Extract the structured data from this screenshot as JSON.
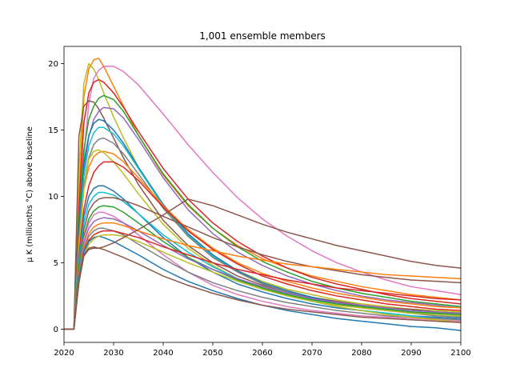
{
  "chart_data": {
    "type": "line",
    "title": "1,001 ensemble members",
    "xlabel": "",
    "ylabel": "μ K (millionths °C) above baseline",
    "xlim": [
      2020,
      2100
    ],
    "ylim": [
      -1,
      21.3
    ],
    "xticks": [
      2020,
      2030,
      2040,
      2050,
      2060,
      2070,
      2080,
      2090,
      2100
    ],
    "yticks": [
      0,
      5,
      10,
      15,
      20
    ],
    "grid": false,
    "legend": "none",
    "colors": [
      "#1f77b4",
      "#ff7f0e",
      "#2ca02c",
      "#d62728",
      "#9467bd",
      "#8c564b",
      "#e377c2",
      "#7f7f7f",
      "#bcbd22",
      "#17becf"
    ],
    "x": [
      2020,
      2022,
      2023,
      2024,
      2025,
      2026,
      2027,
      2028,
      2030,
      2032,
      2035,
      2040,
      2045,
      2050,
      2055,
      2060,
      2065,
      2070,
      2075,
      2080,
      2085,
      2090,
      2095,
      2100
    ],
    "series": [
      {
        "color": "#ff7f0e",
        "values": [
          0,
          0,
          10.0,
          17.5,
          19.6,
          20.3,
          20.4,
          19.8,
          18.3,
          16.8,
          14.6,
          11.6,
          9.3,
          7.6,
          6.3,
          5.3,
          4.6,
          4.0,
          3.6,
          3.2,
          2.9,
          2.6,
          2.4,
          2.2
        ]
      },
      {
        "color": "#bcbd22",
        "values": [
          0,
          0,
          12.0,
          18.5,
          20.0,
          19.6,
          18.8,
          17.8,
          16.0,
          14.4,
          12.2,
          9.2,
          7.0,
          5.5,
          4.4,
          3.6,
          3.0,
          2.6,
          2.2,
          1.9,
          1.7,
          1.5,
          1.4,
          1.3
        ]
      },
      {
        "color": "#e377c2",
        "values": [
          0,
          0,
          6.0,
          13.0,
          17.0,
          18.9,
          19.5,
          19.8,
          19.8,
          19.4,
          18.4,
          16.2,
          13.9,
          11.8,
          9.9,
          8.3,
          7.0,
          5.9,
          5.0,
          4.3,
          3.7,
          3.2,
          2.9,
          2.6
        ]
      },
      {
        "color": "#d62728",
        "values": [
          0,
          0,
          9.0,
          15.5,
          17.8,
          18.6,
          18.8,
          18.6,
          17.8,
          16.7,
          14.9,
          12.1,
          9.8,
          8.0,
          6.6,
          5.5,
          4.6,
          3.9,
          3.4,
          3.0,
          2.6,
          2.3,
          2.1,
          1.9
        ]
      },
      {
        "color": "#8c564b",
        "values": [
          0,
          0,
          14.5,
          16.8,
          17.2,
          17.1,
          16.6,
          15.9,
          14.4,
          12.9,
          10.9,
          8.2,
          6.3,
          5.0,
          4.0,
          3.3,
          2.8,
          2.4,
          2.1,
          1.8,
          1.6,
          1.5,
          1.3,
          1.2
        ]
      },
      {
        "color": "#2ca02c",
        "values": [
          0,
          0,
          8.0,
          13.5,
          15.8,
          16.8,
          17.4,
          17.6,
          17.3,
          16.4,
          14.6,
          11.7,
          9.4,
          7.6,
          6.2,
          5.1,
          4.3,
          3.6,
          3.1,
          2.7,
          2.4,
          2.1,
          1.9,
          1.7
        ]
      },
      {
        "color": "#9467bd",
        "values": [
          0,
          0,
          7.0,
          12.0,
          14.5,
          15.8,
          16.4,
          16.7,
          16.6,
          15.9,
          14.3,
          11.4,
          9.0,
          7.2,
          5.8,
          4.8,
          4.0,
          3.4,
          2.9,
          2.5,
          2.2,
          2.0,
          1.8,
          1.6
        ]
      },
      {
        "color": "#1f77b4",
        "values": [
          0,
          0,
          7.5,
          12.5,
          14.6,
          15.5,
          15.8,
          15.7,
          15.0,
          14.0,
          12.2,
          9.4,
          7.2,
          5.6,
          4.4,
          3.5,
          2.9,
          2.4,
          2.0,
          1.7,
          1.5,
          1.3,
          1.2,
          1.1
        ]
      },
      {
        "color": "#17becf",
        "values": [
          0,
          0,
          6.5,
          11.5,
          13.8,
          14.8,
          15.2,
          15.2,
          14.7,
          13.8,
          12.1,
          9.3,
          7.1,
          5.5,
          4.3,
          3.4,
          2.8,
          2.3,
          1.9,
          1.6,
          1.4,
          1.2,
          1.1,
          1.0
        ]
      },
      {
        "color": "#7f7f7f",
        "values": [
          0,
          0,
          6.0,
          10.8,
          12.9,
          13.9,
          14.3,
          14.4,
          14.0,
          13.2,
          11.7,
          9.1,
          7.0,
          5.4,
          4.3,
          3.4,
          2.8,
          2.3,
          1.9,
          1.6,
          1.4,
          1.2,
          1.0,
          0.9
        ]
      },
      {
        "color": "#ff7f0e",
        "values": [
          0,
          0,
          6.5,
          10.5,
          12.2,
          13.0,
          13.3,
          13.4,
          13.2,
          12.6,
          11.4,
          9.3,
          7.5,
          6.1,
          5.0,
          4.2,
          3.6,
          3.1,
          2.7,
          2.4,
          2.1,
          1.9,
          1.7,
          1.6
        ]
      },
      {
        "color": "#bcbd22",
        "values": [
          0,
          0,
          6.0,
          10.5,
          12.8,
          13.4,
          13.5,
          13.3,
          12.6,
          11.7,
          10.2,
          7.9,
          6.1,
          4.8,
          3.8,
          3.1,
          2.6,
          2.1,
          1.8,
          1.6,
          1.4,
          1.2,
          1.1,
          1.0
        ]
      },
      {
        "color": "#d62728",
        "values": [
          0,
          0,
          5.5,
          9.0,
          10.8,
          11.8,
          12.3,
          12.6,
          12.6,
          12.2,
          11.2,
          9.2,
          7.4,
          6.0,
          4.9,
          4.0,
          3.4,
          2.9,
          2.5,
          2.2,
          1.9,
          1.7,
          1.5,
          1.4
        ]
      },
      {
        "color": "#1f77b4",
        "values": [
          0,
          0,
          5.0,
          8.5,
          10.0,
          10.6,
          10.8,
          10.8,
          10.4,
          9.8,
          8.7,
          6.9,
          5.4,
          4.3,
          3.4,
          2.8,
          2.3,
          1.9,
          1.6,
          1.4,
          1.2,
          1.0,
          0.9,
          0.8
        ]
      },
      {
        "color": "#17becf",
        "values": [
          0,
          0,
          5.0,
          8.0,
          9.4,
          10.0,
          10.3,
          10.3,
          10.1,
          9.6,
          8.7,
          7.1,
          5.8,
          4.7,
          3.8,
          3.1,
          2.5,
          2.1,
          1.7,
          1.4,
          1.2,
          1.0,
          0.8,
          0.7
        ]
      },
      {
        "color": "#8c564b",
        "values": [
          0,
          0,
          4.5,
          7.5,
          8.9,
          9.5,
          9.8,
          9.9,
          9.9,
          9.7,
          9.3,
          8.5,
          7.7,
          6.9,
          6.2,
          5.6,
          5.1,
          4.7,
          4.4,
          4.1,
          3.9,
          3.7,
          3.6,
          3.5
        ]
      },
      {
        "color": "#2ca02c",
        "values": [
          0,
          0,
          4.5,
          7.0,
          8.3,
          8.9,
          9.2,
          9.3,
          9.2,
          8.8,
          8.0,
          6.6,
          5.4,
          4.5,
          3.7,
          3.1,
          2.6,
          2.2,
          1.9,
          1.7,
          1.5,
          1.3,
          1.2,
          1.1
        ]
      },
      {
        "color": "#e377c2",
        "values": [
          0,
          0,
          4.0,
          6.8,
          8.0,
          8.6,
          8.8,
          8.8,
          8.5,
          8.0,
          7.1,
          5.6,
          4.3,
          3.3,
          2.6,
          2.1,
          1.7,
          1.4,
          1.2,
          1.0,
          0.9,
          0.8,
          0.7,
          0.6
        ]
      },
      {
        "color": "#9467bd",
        "values": [
          0,
          0,
          4.0,
          6.5,
          7.6,
          8.1,
          8.3,
          8.4,
          8.3,
          8.0,
          7.4,
          6.3,
          5.3,
          4.5,
          3.8,
          3.2,
          2.7,
          2.3,
          2.0,
          1.8,
          1.6,
          1.4,
          1.3,
          1.2
        ]
      },
      {
        "color": "#ff7f0e",
        "values": [
          0,
          0,
          4.0,
          6.2,
          7.2,
          7.7,
          7.9,
          8.0,
          8.0,
          7.8,
          7.4,
          6.8,
          6.3,
          5.9,
          5.5,
          5.2,
          4.9,
          4.7,
          4.5,
          4.3,
          4.1,
          4.0,
          3.9,
          3.8
        ]
      },
      {
        "color": "#7f7f7f",
        "values": [
          0,
          0,
          3.8,
          6.0,
          7.0,
          7.4,
          7.6,
          7.6,
          7.4,
          7.1,
          6.4,
          5.3,
          4.3,
          3.5,
          2.9,
          2.4,
          2.0,
          1.7,
          1.4,
          1.2,
          1.0,
          0.9,
          0.8,
          0.7
        ]
      },
      {
        "color": "#d62728",
        "values": [
          0,
          0,
          3.8,
          5.8,
          6.7,
          7.1,
          7.3,
          7.4,
          7.4,
          7.2,
          6.9,
          6.2,
          5.6,
          5.0,
          4.5,
          4.1,
          3.7,
          3.4,
          3.1,
          2.9,
          2.7,
          2.5,
          2.3,
          2.2
        ]
      },
      {
        "color": "#1f77b4",
        "values": [
          0,
          0,
          3.8,
          5.8,
          6.6,
          6.9,
          7.0,
          6.9,
          6.6,
          6.2,
          5.6,
          4.5,
          3.6,
          2.9,
          2.3,
          1.8,
          1.4,
          1.1,
          0.8,
          0.6,
          0.4,
          0.2,
          0.1,
          -0.1
        ]
      },
      {
        "color": "#bcbd22",
        "values": [
          0,
          0,
          3.5,
          5.5,
          6.4,
          6.8,
          7.0,
          7.1,
          7.1,
          7.0,
          6.6,
          5.8,
          5.0,
          4.3,
          3.6,
          3.0,
          2.5,
          2.1,
          1.7,
          1.4,
          1.1,
          0.9,
          0.7,
          0.5
        ]
      },
      {
        "color": "#8c564b",
        "values": [
          0,
          0,
          3.5,
          5.6,
          6.1,
          6.2,
          6.1,
          6.0,
          5.7,
          5.4,
          4.9,
          4.0,
          3.3,
          2.7,
          2.2,
          1.8,
          1.5,
          1.3,
          1.1,
          0.9,
          0.8,
          0.7,
          0.6,
          0.5
        ]
      },
      {
        "color": "#8c564b",
        "values": [
          0,
          0,
          3.5,
          5.5,
          6.0,
          6.1,
          6.1,
          6.2,
          6.5,
          6.9,
          7.5,
          8.6,
          9.8,
          9.3,
          8.6,
          7.9,
          7.3,
          6.8,
          6.3,
          5.9,
          5.5,
          5.1,
          4.8,
          4.6
        ]
      }
    ]
  }
}
